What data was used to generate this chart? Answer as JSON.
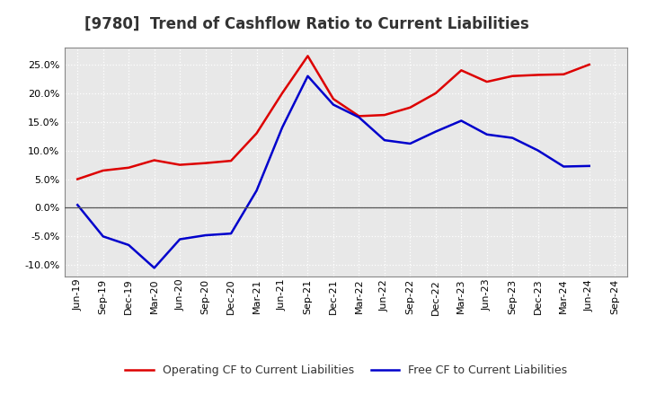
{
  "title": "[9780]  Trend of Cashflow Ratio to Current Liabilities",
  "x_labels": [
    "Jun-19",
    "Sep-19",
    "Dec-19",
    "Mar-20",
    "Jun-20",
    "Sep-20",
    "Dec-20",
    "Mar-21",
    "Jun-21",
    "Sep-21",
    "Dec-21",
    "Mar-22",
    "Jun-22",
    "Sep-22",
    "Dec-22",
    "Mar-23",
    "Jun-23",
    "Sep-23",
    "Dec-23",
    "Mar-24",
    "Jun-24",
    "Sep-24"
  ],
  "operating_cf": [
    5.0,
    6.5,
    7.0,
    8.3,
    7.5,
    7.8,
    8.2,
    13.0,
    20.0,
    26.5,
    19.0,
    16.0,
    16.2,
    17.5,
    20.0,
    24.0,
    22.0,
    23.0,
    23.2,
    23.3,
    25.0,
    null
  ],
  "free_cf": [
    0.5,
    -5.0,
    -6.5,
    -10.5,
    -5.5,
    -4.8,
    -4.5,
    3.0,
    14.0,
    23.0,
    18.0,
    15.8,
    11.8,
    11.2,
    13.3,
    15.2,
    12.8,
    12.2,
    10.0,
    7.2,
    7.3,
    null
  ],
  "operating_color": "#DD0000",
  "free_color": "#0000CC",
  "ylim": [
    -12,
    28
  ],
  "yticks": [
    -10,
    -5,
    0,
    5,
    10,
    15,
    20,
    25
  ],
  "plot_bg_color": "#E8E8E8",
  "fig_bg_color": "#FFFFFF",
  "grid_color": "#FFFFFF",
  "zero_line_color": "#555555",
  "legend_op": "Operating CF to Current Liabilities",
  "legend_free": "Free CF to Current Liabilities",
  "title_fontsize": 12,
  "tick_fontsize": 8,
  "legend_fontsize": 9
}
